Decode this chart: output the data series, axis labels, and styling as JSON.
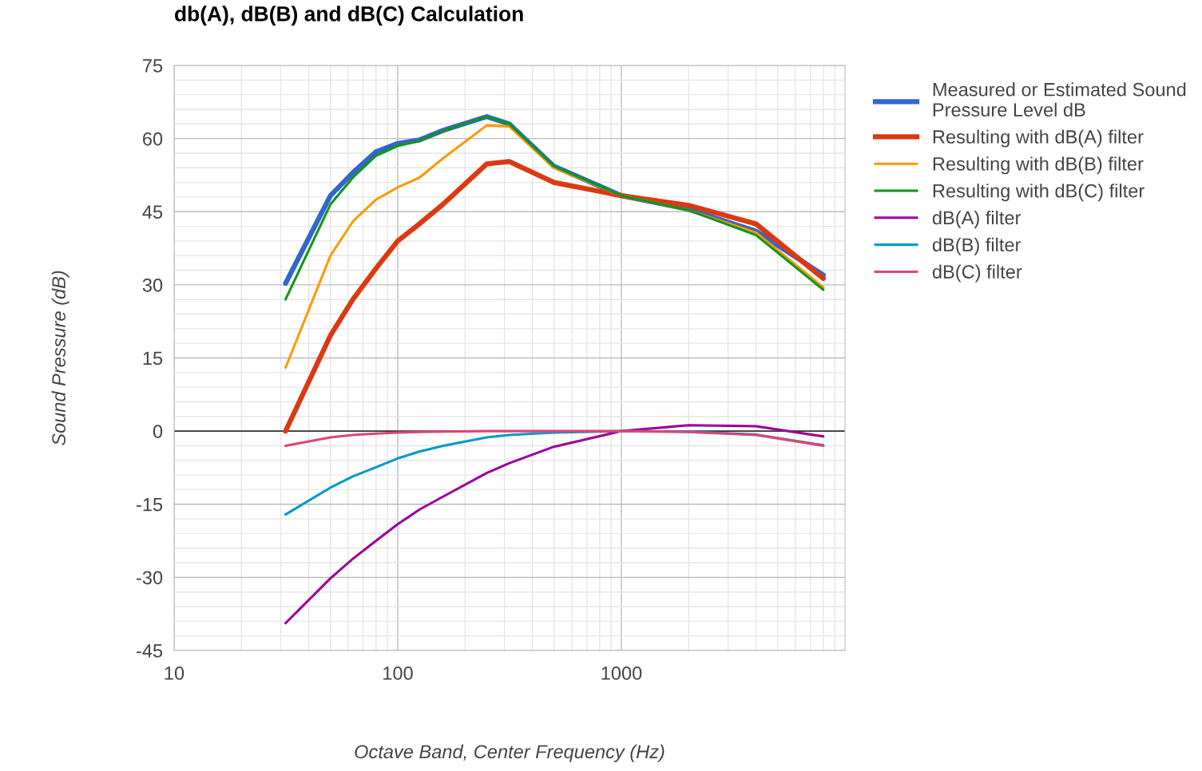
{
  "chart_data": {
    "type": "line",
    "title": "db(A), dB(B) and dB(C) Calculation",
    "xlabel": "Octave Band, Center Frequency (Hz)",
    "ylabel": "Sound Pressure (dB)",
    "x": [
      31.5,
      50,
      63,
      80,
      100,
      125,
      160,
      250,
      315,
      500,
      1000,
      2000,
      4000,
      8000
    ],
    "series": [
      {
        "name": "Measured or Estimated Sound\nPressure Level dB",
        "color": "#3366cc",
        "values": [
          30.3,
          48.3,
          53,
          57.3,
          59,
          59.7,
          61.7,
          64.5,
          63,
          54.3,
          48.3,
          45.5,
          41,
          32
        ]
      },
      {
        "name": "Resulting with dB(A) filter",
        "color": "#dc3912",
        "values": [
          0,
          19.6,
          27,
          33.4,
          39,
          42.5,
          46.6,
          54.8,
          55.3,
          51,
          48.3,
          46.3,
          42.5,
          31.3
        ]
      },
      {
        "name": "Resulting with dB(B) filter",
        "color": "#ff9900",
        "values": [
          13,
          36,
          43,
          47.5,
          50,
          52,
          56,
          62.7,
          62.5,
          54,
          48.3,
          45.3,
          40.7,
          29.5
        ]
      },
      {
        "name": "Resulting with dB(C) filter",
        "color": "#109618",
        "values": [
          27,
          46.5,
          52,
          56.5,
          58.5,
          59.5,
          61.6,
          64.5,
          63,
          54.3,
          48.3,
          45.3,
          40.2,
          29
        ]
      },
      {
        "name": "dB(A) filter",
        "color": "#990099",
        "values": [
          -39.4,
          -30.2,
          -26.2,
          -22.5,
          -19.1,
          -16.1,
          -13.4,
          -8.6,
          -6.6,
          -3.2,
          0,
          1.2,
          1.0,
          -1.1
        ]
      },
      {
        "name": "dB(B) filter",
        "color": "#0099c6",
        "values": [
          -17.1,
          -11.6,
          -9.3,
          -7.4,
          -5.6,
          -4.2,
          -3.0,
          -1.3,
          -0.8,
          -0.3,
          0,
          -0.1,
          -0.7,
          -2.9
        ]
      },
      {
        "name": "dB(C) filter",
        "color": "#dd4477",
        "values": [
          -3.0,
          -1.3,
          -0.8,
          -0.5,
          -0.3,
          -0.2,
          -0.1,
          0,
          0,
          0,
          0,
          -0.2,
          -0.8,
          -3.0
        ]
      }
    ],
    "log": "x",
    "xlim": [
      10,
      10000
    ],
    "xticks": [
      10,
      100,
      1000
    ],
    "ylim": [
      -45,
      75
    ],
    "yticks": [
      -45,
      -30,
      -15,
      0,
      15,
      30,
      45,
      60,
      75
    ],
    "ref_lines": [
      {
        "axis": "y",
        "value": 0,
        "color": "#333333"
      }
    ],
    "grid": true,
    "legend": "top right",
    "marker": "none",
    "line_style": "solid"
  }
}
